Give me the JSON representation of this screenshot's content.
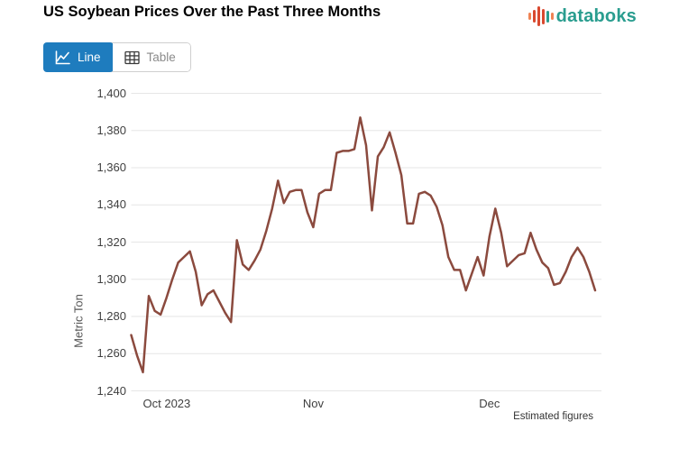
{
  "header": {
    "title": "US Soybean Prices Over the Past Three Months",
    "logo_text": "databoks"
  },
  "toolbar": {
    "line_label": "Line",
    "table_label": "Table"
  },
  "colors": {
    "accent_blue": "#1e7cbe",
    "line": "#8b4a3e",
    "grid": "#e6e6e6",
    "teal": "#2a9d8f",
    "logo_orange": "#ef8354",
    "logo_red": "#d9492f",
    "tick_text": "#404040"
  },
  "chart_data": {
    "type": "line",
    "title": "US Soybean Prices Over the Past Three Months",
    "xlabel": "",
    "ylabel": "Metric Ton",
    "ylim": [
      1240,
      1400
    ],
    "grid": "horizontal-only",
    "legend": "none",
    "footnote": "Estimated figures",
    "y_ticks": [
      {
        "value": 1400,
        "label": "1,400"
      },
      {
        "value": 1380,
        "label": "1,380"
      },
      {
        "value": 1360,
        "label": "1,360"
      },
      {
        "value": 1340,
        "label": "1,340"
      },
      {
        "value": 1320,
        "label": "1,320"
      },
      {
        "value": 1300,
        "label": "1,300"
      },
      {
        "value": 1280,
        "label": "1,280"
      },
      {
        "value": 1260,
        "label": "1,260"
      },
      {
        "value": 1240,
        "label": "1,240"
      }
    ],
    "x_tick_labels": [
      {
        "label": "Oct 2023",
        "index": 2,
        "align": "left"
      },
      {
        "label": "Nov",
        "index": 31,
        "align": "center"
      },
      {
        "label": "Dec",
        "index": 61,
        "align": "center"
      }
    ],
    "series": [
      {
        "name": "US soybean price (Metric Ton)",
        "values": [
          1270,
          1259,
          1250,
          1291,
          1283,
          1281,
          1290,
          1300,
          1309,
          1312,
          1315,
          1304,
          1286,
          1292,
          1294,
          1288,
          1282,
          1277,
          1321,
          1308,
          1305,
          1310,
          1316,
          1326,
          1338,
          1353,
          1341,
          1347,
          1348,
          1348,
          1336,
          1328,
          1346,
          1348,
          1348,
          1368,
          1369,
          1369,
          1370,
          1387,
          1372,
          1337,
          1366,
          1371,
          1379,
          1368,
          1356,
          1330,
          1330,
          1346,
          1347,
          1345,
          1339,
          1329,
          1312,
          1305,
          1305,
          1294,
          1303,
          1312,
          1302,
          1323,
          1338,
          1325,
          1307,
          1310,
          1313,
          1314,
          1325,
          1316,
          1309,
          1306,
          1297,
          1298,
          1304,
          1312,
          1317,
          1312,
          1304,
          1294
        ]
      }
    ]
  }
}
